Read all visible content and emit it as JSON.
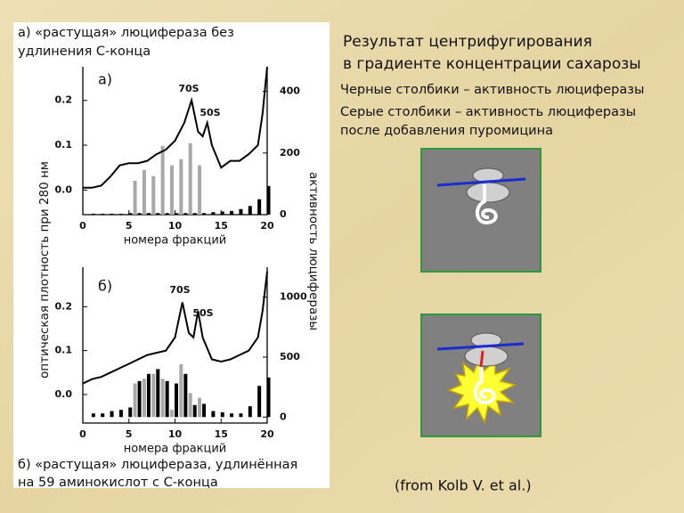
{
  "slide": {
    "title_lines": [
      "Результат центрифугирования",
      "в градиенте концентрации сахарозы"
    ],
    "legend_lines": [
      "Черные столбики – активность  люциферазы",
      "Серые столбики – активность люциферазы",
      "после добавления пуромицина"
    ],
    "caption_a": [
      "а) «растущая» люцифераза без",
      "удлинения С-конца"
    ],
    "caption_b": [
      "б) «растущая» люцифераза, удлинённая",
      "на 59 аминокислот с С-конца"
    ],
    "ylabel": "оптическая плотность при 280 нм",
    "y2label": "активность люциферазы",
    "credit": "(from Kolb V. et al.)"
  },
  "chart_data": [
    {
      "type": "combo",
      "panel_label": "а)",
      "annotations": [
        "70S",
        "50S"
      ],
      "xlabel": "номера фракций",
      "xlim": [
        0,
        20
      ],
      "xticks": [
        0,
        5,
        10,
        15,
        20
      ],
      "ylim": [
        -0.055,
        0.275
      ],
      "yticks": [
        {
          "value": 0,
          "label": "0.0"
        },
        0.1,
        0.2
      ],
      "y2lim": [
        0,
        480
      ],
      "y2ticks": [
        0,
        200,
        400
      ],
      "series": [
        {
          "kind": "line",
          "color": "#000000",
          "x": [
            0,
            1,
            2,
            3,
            4,
            5,
            6,
            7,
            8,
            9,
            10,
            11,
            11.8,
            12.5,
            13,
            13.5,
            14,
            15,
            16,
            17,
            18,
            19,
            19.5,
            20
          ],
          "values": [
            0.005,
            0.005,
            0.01,
            0.03,
            0.055,
            0.06,
            0.06,
            0.065,
            0.08,
            0.09,
            0.11,
            0.15,
            0.2,
            0.13,
            0.12,
            0.15,
            0.1,
            0.05,
            0.065,
            0.065,
            0.08,
            0.1,
            0.17,
            0.275
          ]
        },
        {
          "kind": "bar",
          "color": "#a8a8a8",
          "axis": "y2",
          "x": [
            6,
            7,
            8,
            9,
            10,
            11,
            12,
            13
          ],
          "values": [
            110,
            145,
            125,
            223,
            160,
            180,
            232,
            160
          ]
        },
        {
          "kind": "bar",
          "color": "#000000",
          "axis": "y2",
          "x": [
            1,
            2,
            3,
            4,
            5,
            6,
            7,
            8,
            9,
            10,
            11,
            12,
            13,
            14,
            15,
            16,
            17,
            18,
            19,
            20
          ],
          "values": [
            3,
            3,
            3,
            3,
            5,
            5,
            5,
            5,
            5,
            5,
            5,
            5,
            5,
            8,
            10,
            12,
            18,
            28,
            50,
            93
          ]
        }
      ]
    },
    {
      "type": "combo",
      "panel_label": "б)",
      "annotations": [
        "70S",
        "50S"
      ],
      "xlabel": "номера фракций",
      "xlim": [
        0,
        20
      ],
      "xticks": [
        0,
        5,
        10,
        15,
        20
      ],
      "ylim": [
        -0.065,
        0.29
      ],
      "yticks": [
        {
          "value": 0,
          "label": "0.0"
        },
        0.1,
        0.2
      ],
      "y2lim": [
        -50,
        1250
      ],
      "y2ticks": [
        0,
        500,
        1000
      ],
      "series": [
        {
          "kind": "line",
          "color": "#000000",
          "x": [
            0,
            1,
            2,
            3,
            4,
            5,
            6,
            7,
            8,
            9,
            10,
            10.8,
            11.5,
            12,
            12.5,
            13,
            14,
            15,
            16,
            17,
            18,
            19,
            19.5,
            20
          ],
          "values": [
            0.025,
            0.035,
            0.04,
            0.05,
            0.06,
            0.07,
            0.08,
            0.09,
            0.095,
            0.1,
            0.13,
            0.21,
            0.14,
            0.13,
            0.19,
            0.13,
            0.08,
            0.075,
            0.08,
            0.09,
            0.1,
            0.13,
            0.19,
            0.28
          ]
        },
        {
          "kind": "bar",
          "color": "#a8a8a8",
          "axis": "y2",
          "x": [
            6,
            7,
            8,
            9,
            10,
            11,
            12,
            13
          ],
          "values": [
            280,
            320,
            360,
            320,
            60,
            440,
            200,
            160
          ]
        },
        {
          "kind": "bar",
          "color": "#000000",
          "axis": "y2",
          "x": [
            1,
            2,
            3,
            4,
            5,
            6,
            7,
            8,
            9,
            10,
            11,
            12,
            13,
            14,
            15,
            16,
            17,
            18,
            19,
            20
          ],
          "values": [
            30,
            30,
            50,
            60,
            80,
            300,
            360,
            400,
            300,
            280,
            360,
            100,
            110,
            50,
            40,
            30,
            30,
            90,
            260,
            330
          ]
        }
      ]
    }
  ]
}
